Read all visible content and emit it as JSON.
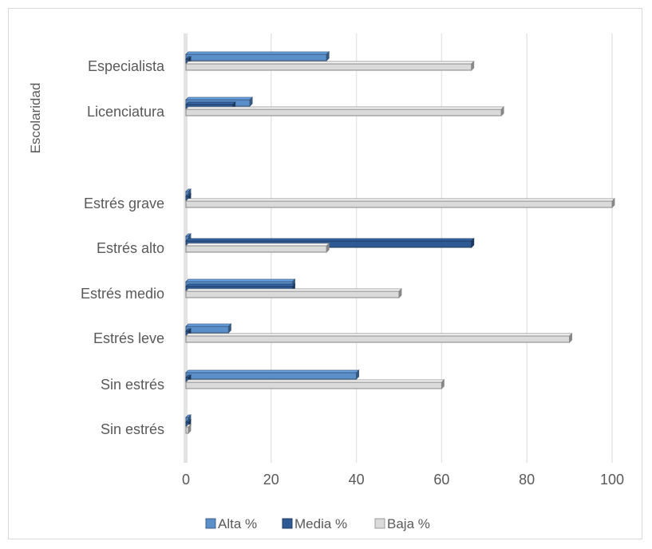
{
  "chart_data": {
    "type": "bar",
    "orientation": "horizontal",
    "ylabel": "Escolaridad",
    "xlabel": "",
    "xlim": [
      0,
      100
    ],
    "x_ticks": [
      "0",
      "20",
      "40",
      "60",
      "80",
      "100"
    ],
    "grid": "vertical",
    "legend_position": "bottom",
    "categories": [
      "Especialista",
      "Licenciatura",
      "",
      "Estrés grave",
      "Estrés alto",
      "Estrés medio",
      "Estrés leve",
      "Sin estrés",
      "Sin estrés"
    ],
    "series": [
      {
        "name": "Alta  %",
        "color": "#5b8fc9",
        "values": [
          33,
          15,
          null,
          0,
          0,
          25,
          10,
          40,
          0
        ]
      },
      {
        "name": "Media  %",
        "color": "#2e5a93",
        "values": [
          0,
          11,
          null,
          0,
          67,
          25,
          0,
          0,
          0
        ]
      },
      {
        "name": "Baja  %",
        "color": "#dadada",
        "values": [
          67,
          74,
          null,
          100,
          33,
          50,
          90,
          60,
          0
        ]
      }
    ]
  }
}
